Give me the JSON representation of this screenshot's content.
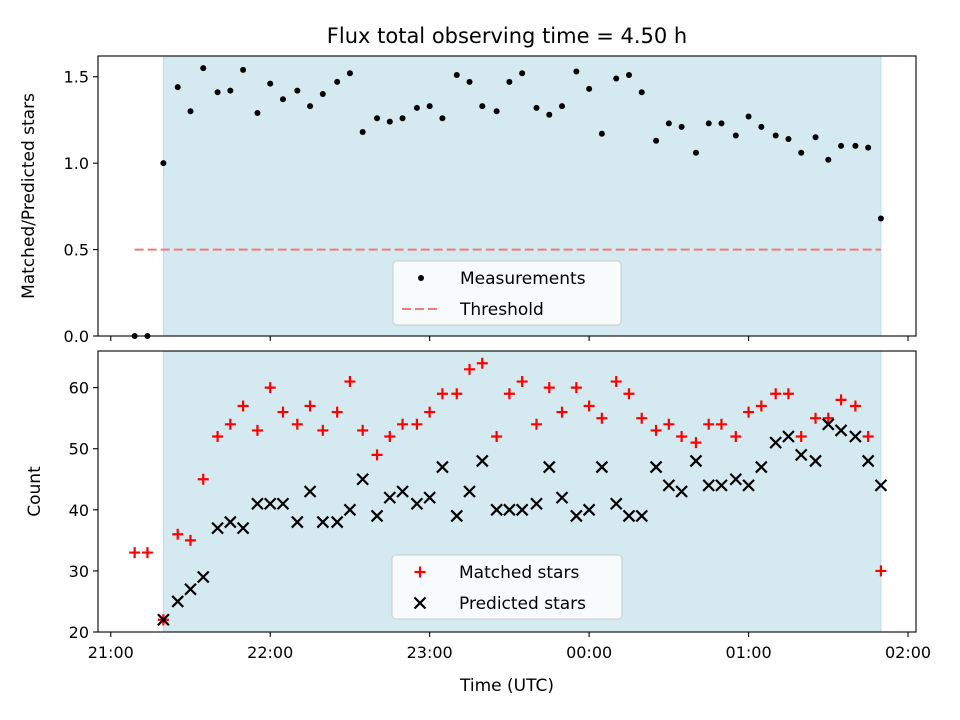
{
  "chart_data": {
    "title": "Flux total observing time = 4.50 h",
    "xlabel": "Time (UTC)",
    "x_unit": "hours UTC (values ≥ 24 are after midnight)",
    "xlim": [
      20.92,
      26.05
    ],
    "xticks": [
      {
        "value": 21,
        "label": "21:00"
      },
      {
        "value": 22,
        "label": "22:00"
      },
      {
        "value": 23,
        "label": "23:00"
      },
      {
        "value": 24,
        "label": "00:00"
      },
      {
        "value": 25,
        "label": "01:00"
      },
      {
        "value": 26,
        "label": "02:00"
      }
    ],
    "observing_window": [
      21.33,
      25.83
    ],
    "window_color": "#d4e9f0",
    "panels": [
      {
        "type": "scatter",
        "ylabel": "Matched/Predicted stars",
        "ylim": [
          0,
          1.62
        ],
        "yticks": [
          {
            "value": 0,
            "label": "0.0"
          },
          {
            "value": 0.5,
            "label": "0.5"
          },
          {
            "value": 1,
            "label": "1.0"
          },
          {
            "value": 1.5,
            "label": "1.5"
          }
        ],
        "threshold": {
          "value": 0.5,
          "x_range": [
            21.15,
            25.83
          ],
          "color": "#ee7c7c"
        },
        "legend": {
          "placement": "lower center",
          "entries": [
            {
              "label": "Measurements",
              "marker": "dot",
              "color": "#000000"
            },
            {
              "label": "Threshold",
              "marker": "dash",
              "color": "#ee7c7c"
            }
          ]
        },
        "series": [
          {
            "name": "Measurements",
            "marker": "dot",
            "color": "#000000",
            "x": [
              21.15,
              21.23,
              21.33,
              21.42,
              21.5,
              21.58,
              21.67,
              21.75,
              21.83,
              21.92,
              22.0,
              22.08,
              22.17,
              22.25,
              22.33,
              22.42,
              22.5,
              22.58,
              22.67,
              22.75,
              22.83,
              22.92,
              23.0,
              23.08,
              23.17,
              23.25,
              23.33,
              23.42,
              23.5,
              23.58,
              23.67,
              23.75,
              23.83,
              23.92,
              24.0,
              24.08,
              24.17,
              24.25,
              24.33,
              24.42,
              24.5,
              24.58,
              24.67,
              24.75,
              24.83,
              24.92,
              25.0,
              25.08,
              25.17,
              25.25,
              25.33,
              25.42,
              25.5,
              25.58,
              25.67,
              25.75,
              25.83
            ],
            "y": [
              0.0,
              0.0,
              1.0,
              1.44,
              1.3,
              1.55,
              1.41,
              1.42,
              1.54,
              1.29,
              1.46,
              1.37,
              1.42,
              1.33,
              1.4,
              1.47,
              1.52,
              1.18,
              1.26,
              1.24,
              1.26,
              1.32,
              1.33,
              1.26,
              1.51,
              1.47,
              1.33,
              1.3,
              1.47,
              1.52,
              1.32,
              1.28,
              1.33,
              1.53,
              1.43,
              1.17,
              1.49,
              1.51,
              1.41,
              1.13,
              1.23,
              1.21,
              1.06,
              1.23,
              1.23,
              1.16,
              1.27,
              1.21,
              1.16,
              1.14,
              1.06,
              1.15,
              1.02,
              1.1,
              1.1,
              1.09,
              0.68
            ]
          }
        ]
      },
      {
        "type": "scatter",
        "ylabel": "Count",
        "ylim": [
          20,
          66
        ],
        "yticks": [
          {
            "value": 20,
            "label": "20"
          },
          {
            "value": 30,
            "label": "30"
          },
          {
            "value": 40,
            "label": "40"
          },
          {
            "value": 50,
            "label": "50"
          },
          {
            "value": 60,
            "label": "60"
          }
        ],
        "legend": {
          "placement": "lower center",
          "entries": [
            {
              "label": "Matched stars",
              "marker": "plus",
              "color": "#ff0000"
            },
            {
              "label": "Predicted stars",
              "marker": "x",
              "color": "#000000"
            }
          ]
        },
        "series": [
          {
            "name": "Matched stars",
            "marker": "plus",
            "color": "#ff0000",
            "x": [
              21.15,
              21.23,
              21.33,
              21.42,
              21.5,
              21.58,
              21.67,
              21.75,
              21.83,
              21.92,
              22.0,
              22.08,
              22.17,
              22.25,
              22.33,
              22.42,
              22.5,
              22.58,
              22.67,
              22.75,
              22.83,
              22.92,
              23.0,
              23.08,
              23.17,
              23.25,
              23.33,
              23.42,
              23.5,
              23.58,
              23.67,
              23.75,
              23.83,
              23.92,
              24.0,
              24.08,
              24.17,
              24.25,
              24.33,
              24.42,
              24.5,
              24.58,
              24.67,
              24.75,
              24.83,
              24.92,
              25.0,
              25.08,
              25.17,
              25.25,
              25.33,
              25.42,
              25.5,
              25.58,
              25.67,
              25.75,
              25.83
            ],
            "y": [
              33,
              33,
              22,
              36,
              35,
              45,
              52,
              54,
              57,
              53,
              60,
              56,
              54,
              57,
              53,
              56,
              61,
              53,
              49,
              52,
              54,
              54,
              56,
              59,
              59,
              63,
              64,
              52,
              59,
              61,
              54,
              60,
              56,
              60,
              57,
              55,
              61,
              59,
              55,
              53,
              54,
              52,
              51,
              54,
              54,
              52,
              56,
              57,
              59,
              59,
              52,
              55,
              55,
              58,
              57,
              52,
              30
            ]
          },
          {
            "name": "Predicted stars",
            "marker": "x",
            "color": "#000000",
            "x": [
              21.33,
              21.42,
              21.5,
              21.58,
              21.67,
              21.75,
              21.83,
              21.92,
              22.0,
              22.08,
              22.17,
              22.25,
              22.33,
              22.42,
              22.5,
              22.58,
              22.67,
              22.75,
              22.83,
              22.92,
              23.0,
              23.08,
              23.17,
              23.25,
              23.33,
              23.42,
              23.5,
              23.58,
              23.67,
              23.75,
              23.83,
              23.92,
              24.0,
              24.08,
              24.17,
              24.25,
              24.33,
              24.42,
              24.5,
              24.58,
              24.67,
              24.75,
              24.83,
              24.92,
              25.0,
              25.08,
              25.17,
              25.25,
              25.33,
              25.42,
              25.5,
              25.58,
              25.67,
              25.75,
              25.83
            ],
            "y": [
              22,
              25,
              27,
              29,
              37,
              38,
              37,
              41,
              41,
              41,
              38,
              43,
              38,
              38,
              40,
              45,
              39,
              42,
              43,
              41,
              42,
              47,
              39,
              43,
              48,
              40,
              40,
              40,
              41,
              47,
              42,
              39,
              40,
              47,
              41,
              39,
              39,
              47,
              44,
              43,
              48,
              44,
              44,
              45,
              44,
              47,
              51,
              52,
              49,
              48,
              54,
              53,
              52,
              48,
              44
            ]
          }
        ]
      }
    ]
  }
}
